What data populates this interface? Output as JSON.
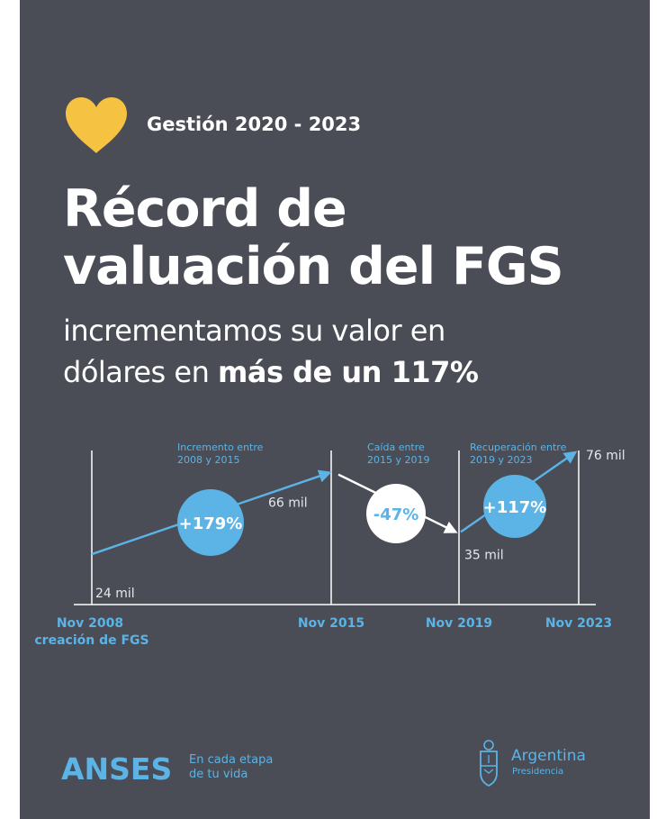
{
  "header": {
    "tag": "Gestión 2020 - 2023",
    "title_line1": "Récord de",
    "title_line2": "valuación del FGS",
    "subtitle_line1": "incrementamos su valor en",
    "subtitle_line2_regular": "dólares en ",
    "subtitle_line2_bold": "más de un 117%"
  },
  "colors": {
    "background": "#4a4d55",
    "accent_blue": "#5bb3e6",
    "heart_yellow": "#f6c242",
    "text_white": "#ffffff"
  },
  "chart_data": {
    "type": "line",
    "x": [
      "Nov 2008",
      "Nov 2015",
      "Nov 2019",
      "Nov 2023"
    ],
    "x_years": [
      2008.83,
      2015.83,
      2019.83,
      2023.83
    ],
    "y": [
      24,
      66,
      35,
      76
    ],
    "point_labels": [
      "24 mil",
      "66 mil",
      "35 mil",
      "76 mil"
    ],
    "x_tick_labels": [
      "Nov 2008",
      "Nov 2015",
      "Nov 2019",
      "Nov 2023"
    ],
    "x_tick_sublabel": "creación de FGS",
    "ylim": [
      0,
      85
    ],
    "annotations": [
      {
        "caption_line1": "Incremento entre",
        "caption_line2": "2008 y 2015",
        "badge": "+179%",
        "style": "filled"
      },
      {
        "caption_line1": "Caída entre",
        "caption_line2": "2015  y 2019",
        "badge": "-47%",
        "style": "outline"
      },
      {
        "caption_line1": "Recuperación entre",
        "caption_line2": "2019 y 2023",
        "badge": "+117%",
        "style": "filled"
      }
    ]
  },
  "footer": {
    "anses_logo": "ANSES",
    "anses_tagline_line1": "En cada etapa",
    "anses_tagline_line2": "de tu vida",
    "argentina_name": "Argentina",
    "argentina_sub": "Presidencia"
  }
}
